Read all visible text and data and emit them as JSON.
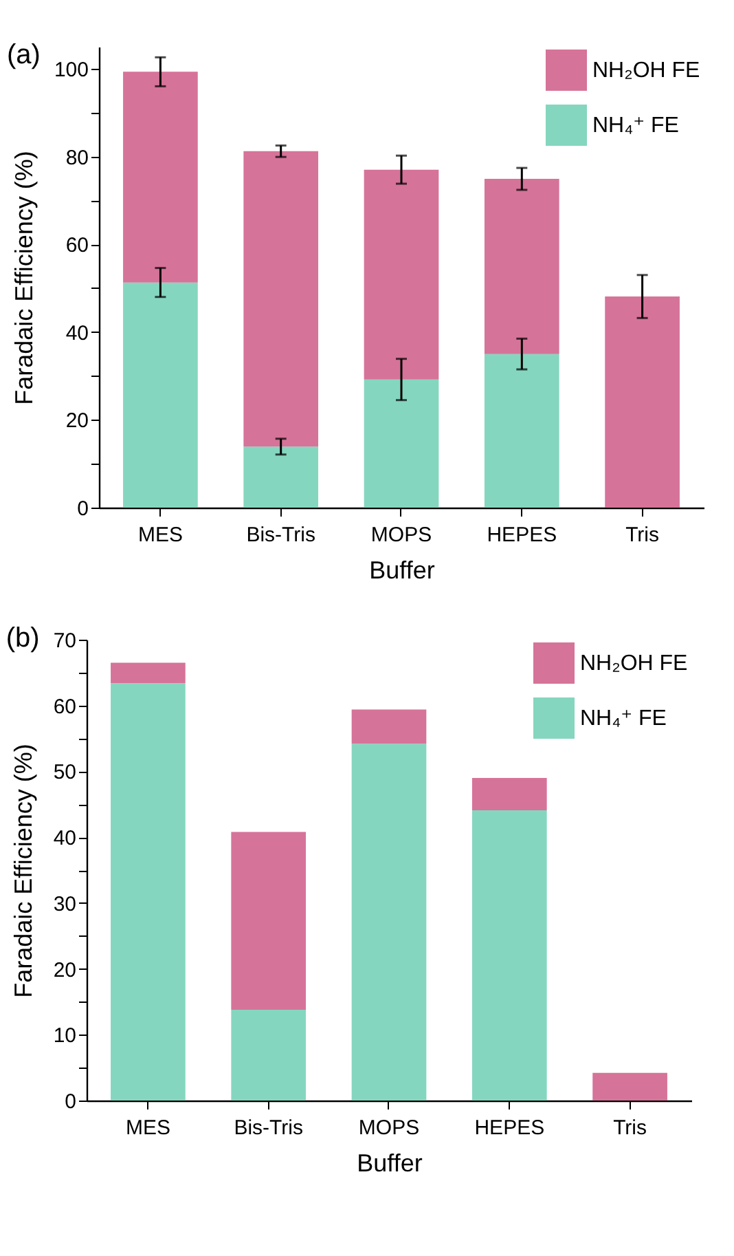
{
  "chart_data": [
    {
      "type": "bar",
      "title": "(a)",
      "xlabel": "Buffer",
      "ylabel": "Faradaic Efficiency (%)",
      "categories": [
        "MES",
        "Bis-Tris",
        "MOPS",
        "HEPES",
        "Tris"
      ],
      "stacked": true,
      "series": [
        {
          "name": "NH₄⁺ FE",
          "color": "#85d6bf",
          "values": [
            51.3,
            13.9,
            29.2,
            35.0,
            0
          ],
          "errors": [
            3.3,
            1.8,
            4.7,
            3.5,
            null
          ]
        },
        {
          "name": "NH₂OH FE",
          "color": "#d67399",
          "values": [
            48.0,
            67.3,
            47.8,
            39.9,
            48.1
          ],
          "errors": [
            3.3,
            1.3,
            3.2,
            2.5,
            4.9
          ]
        }
      ],
      "ylim": [
        0,
        105
      ],
      "yticks": [
        0,
        {
          "value": 10,
          "label": null
        },
        20,
        {
          "value": 30,
          "label": null
        },
        40,
        {
          "value": 50,
          "label": null
        },
        60,
        {
          "value": 70,
          "label": null
        },
        80,
        {
          "value": 90,
          "label": null
        },
        100
      ],
      "grid": false,
      "legend": "top right"
    },
    {
      "type": "bar",
      "title": "(b)",
      "xlabel": "Buffer",
      "ylabel": "Faradaic Efficiency (%)",
      "categories": [
        "MES",
        "Bis-Tris",
        "MOPS",
        "HEPES",
        "Tris"
      ],
      "stacked": true,
      "series": [
        {
          "name": "NH₄⁺ FE",
          "color": "#85d6bf",
          "values": [
            63.4,
            13.8,
            54.2,
            44.1,
            0
          ]
        },
        {
          "name": "NH₂OH FE",
          "color": "#d67399",
          "values": [
            3.1,
            27.0,
            5.2,
            4.9,
            4.2
          ]
        }
      ],
      "ylim": [
        0,
        70
      ],
      "yticks": [
        0,
        {
          "value": 5,
          "label": null
        },
        10,
        {
          "value": 15,
          "label": null
        },
        20,
        {
          "value": 25,
          "label": null
        },
        30,
        {
          "value": 35,
          "label": null
        },
        40,
        {
          "value": 45,
          "label": null
        },
        50,
        {
          "value": 55,
          "label": null
        },
        60,
        {
          "value": 65,
          "label": null
        },
        70
      ],
      "grid": false,
      "legend": "top right"
    }
  ]
}
